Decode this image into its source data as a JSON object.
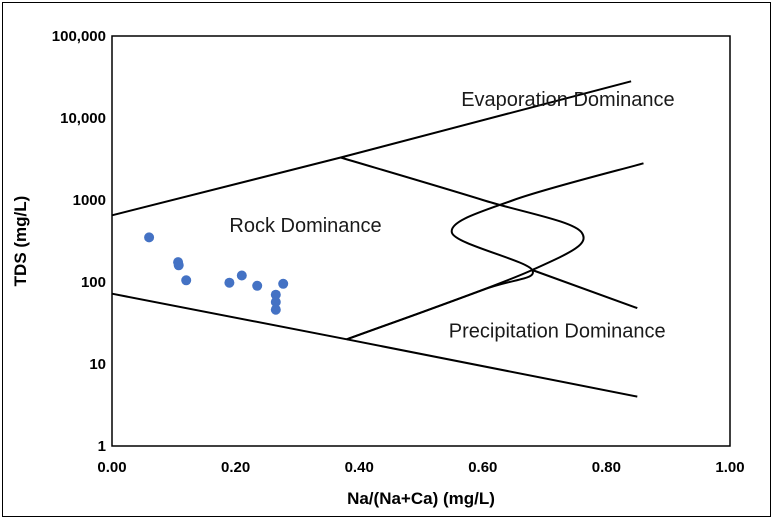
{
  "chart_data": {
    "type": "scatter",
    "title": "",
    "xlabel": "Na/(Na+Ca) (mg/L)",
    "ylabel": "TDS (mg/L)",
    "xlim": [
      0,
      1
    ],
    "ylim": [
      1,
      100000
    ],
    "y_scale": "log",
    "grid": false,
    "legend": "none",
    "x_ticks": [
      "0.00",
      "0.20",
      "0.40",
      "0.60",
      "0.80",
      "1.00"
    ],
    "y_ticks": [
      "1",
      "10",
      "100",
      "1000",
      "10,000",
      "100,000"
    ],
    "point_color": "#4472c4",
    "series": [
      {
        "points": [
          {
            "x": 0.06,
            "y": 350
          },
          {
            "x": 0.107,
            "y": 175
          },
          {
            "x": 0.108,
            "y": 160
          },
          {
            "x": 0.12,
            "y": 105
          },
          {
            "x": 0.19,
            "y": 98
          },
          {
            "x": 0.21,
            "y": 120
          },
          {
            "x": 0.235,
            "y": 90
          },
          {
            "x": 0.265,
            "y": 70
          },
          {
            "x": 0.265,
            "y": 57
          },
          {
            "x": 0.265,
            "y": 46
          },
          {
            "x": 0.277,
            "y": 95
          }
        ]
      }
    ],
    "boundary_lines": [
      {
        "points": [
          [
            0,
            650
          ],
          [
            0.37,
            3300
          ],
          [
            0.84,
            28000
          ]
        ]
      },
      {
        "points": [
          [
            0,
            72
          ],
          [
            0.38,
            20
          ],
          [
            0.85,
            4
          ]
        ]
      },
      {
        "points": [
          [
            0.37,
            3300
          ],
          [
            0.6,
            1000
          ],
          [
            0.76,
            400
          ],
          [
            0.68,
            140
          ],
          [
            0.38,
            20
          ]
        ]
      },
      {
        "points": [
          [
            0.38,
            20
          ],
          [
            0.6,
            80
          ],
          [
            0.68,
            140
          ],
          [
            0.55,
            400
          ],
          [
            0.65,
            1000
          ],
          [
            0.86,
            2800
          ]
        ]
      },
      {
        "points": [
          [
            0.68,
            140
          ],
          [
            0.85,
            48
          ]
        ]
      }
    ],
    "annotations": [
      {
        "text": "Evaporation Dominance",
        "x": 0.565,
        "y": 14000
      },
      {
        "text": "Rock Dominance",
        "x": 0.19,
        "y": 410
      },
      {
        "text": "Precipitation Dominance",
        "x": 0.545,
        "y": 21
      }
    ]
  }
}
